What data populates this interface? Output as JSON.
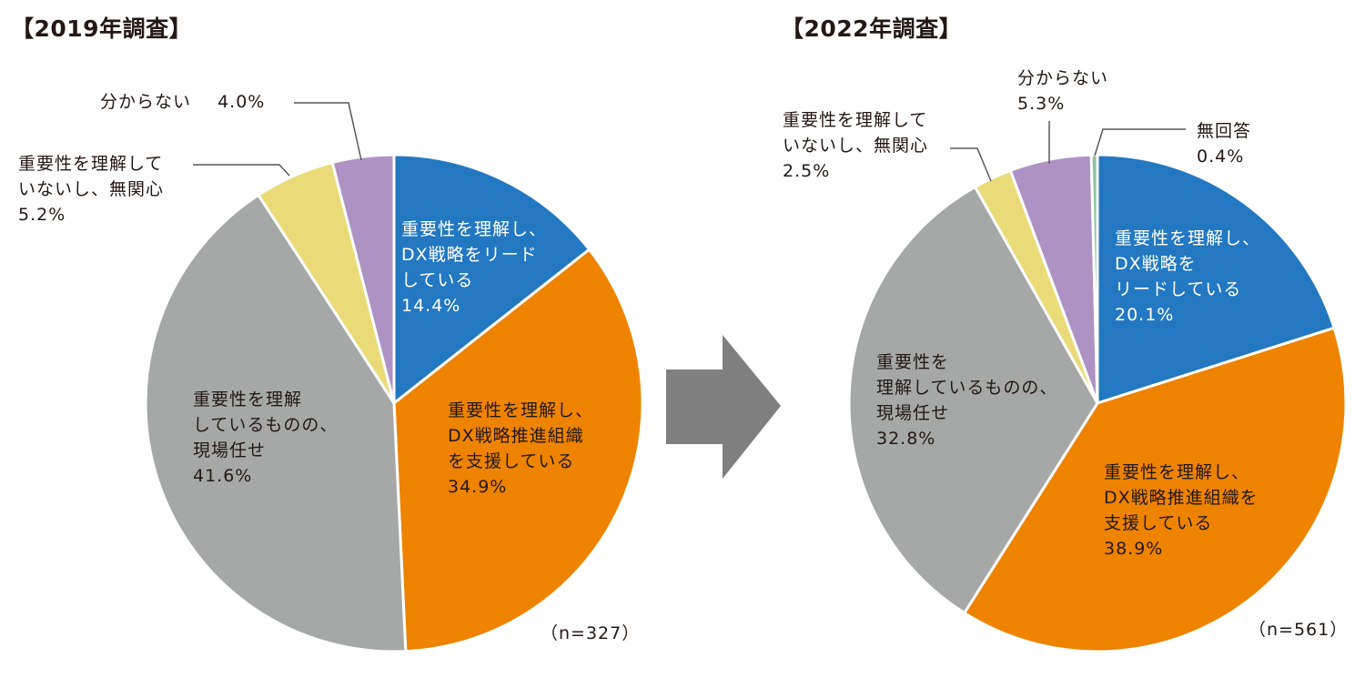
{
  "chart_data": [
    {
      "type": "pie",
      "title": "【2019年調査】",
      "n_label": "（n=327）",
      "slices": [
        {
          "label_lines": [
            "重要性を理解し、",
            "DX戦略をリード",
            "している"
          ],
          "value": 14.4,
          "value_label": "14.4%",
          "color": "#2378C1"
        },
        {
          "label_lines": [
            "重要性を理解し、",
            "DX戦略推進組織",
            "を支援している"
          ],
          "value": 34.9,
          "value_label": "34.9%",
          "color": "#EE8300"
        },
        {
          "label_lines": [
            "重要性を理解",
            "しているものの、",
            "現場任せ"
          ],
          "value": 41.6,
          "value_label": "41.6%",
          "color": "#A5A8A6"
        },
        {
          "label_lines": [
            "重要性を理解して",
            "いないし、無関心"
          ],
          "value": 5.2,
          "value_label": "5.2%",
          "color": "#EBDB78"
        },
        {
          "label_lines": [
            "分からない"
          ],
          "value": 4.0,
          "value_label": "4.0%",
          "color": "#AD93C3"
        }
      ]
    },
    {
      "type": "pie",
      "title": "【2022年調査】",
      "n_label": "（n=561）",
      "slices": [
        {
          "label_lines": [
            "重要性を理解し、",
            "DX戦略を",
            "リードしている"
          ],
          "value": 20.1,
          "value_label": "20.1%",
          "color": "#2378C1"
        },
        {
          "label_lines": [
            "重要性を理解し、",
            "DX戦略推進組織を",
            "支援している"
          ],
          "value": 38.9,
          "value_label": "38.9%",
          "color": "#EE8300"
        },
        {
          "label_lines": [
            "重要性を",
            "理解しているものの、",
            "現場任せ"
          ],
          "value": 32.8,
          "value_label": "32.8%",
          "color": "#A5A8A6"
        },
        {
          "label_lines": [
            "重要性を理解して",
            "いないし、無関心"
          ],
          "value": 2.5,
          "value_label": "2.5%",
          "color": "#EBDB78"
        },
        {
          "label_lines": [
            "分からない"
          ],
          "value": 5.3,
          "value_label": "5.3%",
          "color": "#AD93C3"
        },
        {
          "label_lines": [
            "無回答"
          ],
          "value": 0.4,
          "value_label": "0.4%",
          "color": "#8DC39C"
        }
      ]
    }
  ],
  "arrow_color": "#7F7F7F",
  "leader_color": "#595757"
}
